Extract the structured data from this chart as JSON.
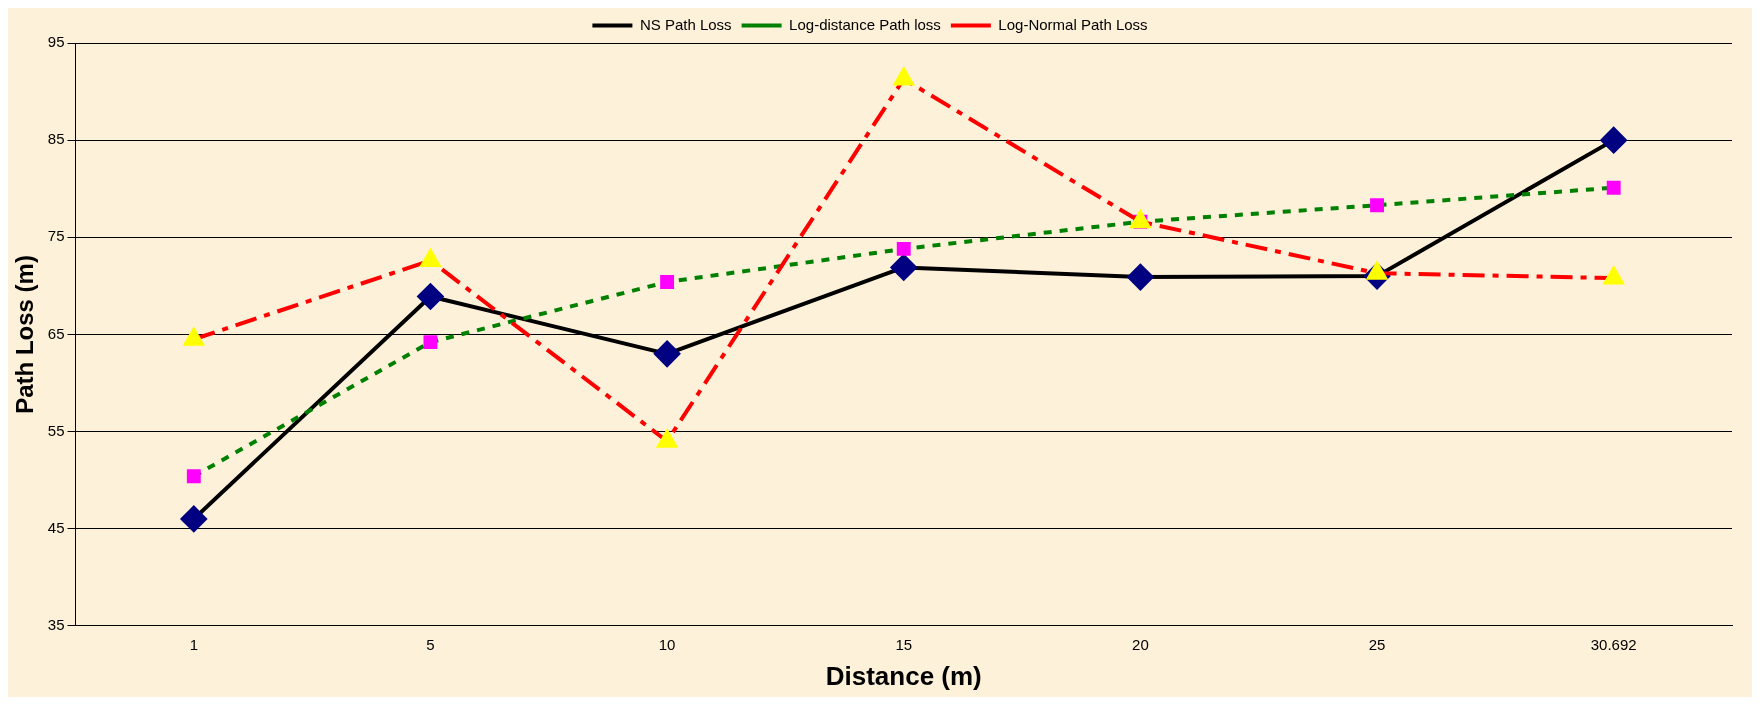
{
  "chart_data": {
    "type": "line",
    "xlabel": "Distance (m)",
    "ylabel": "Path Loss (m)",
    "categories": [
      "1",
      "5",
      "10",
      "15",
      "20",
      "25",
      "30.692"
    ],
    "ylim": [
      35,
      95
    ],
    "yticks": [
      35,
      45,
      55,
      65,
      75,
      85,
      95
    ],
    "grid": "y",
    "legend": "top",
    "series": [
      {
        "name": "NS Path Loss",
        "color": "#000000",
        "colors": [
          "#000080",
          "#000080",
          "#000080",
          "#000080",
          "#000080",
          "#000080",
          "#000080"
        ],
        "marker": "diamond",
        "line_style": "solid",
        "values": [
          46,
          68.9,
          63,
          71.9,
          70.9,
          71,
          85
        ]
      },
      {
        "name": "Log-distance Path loss",
        "color": "#008000",
        "colors": [
          "#ff00ff",
          "#ff00ff",
          "#ff00ff",
          "#ff00ff",
          "#ff00ff",
          "#ff00ff",
          "#ff00ff"
        ],
        "marker": "square",
        "line_style": "dotted",
        "values": [
          50.4,
          64.2,
          70.4,
          73.8,
          76.6,
          78.3,
          80.1
        ]
      },
      {
        "name": "Log-Normal Path Loss",
        "color": "#ff0000",
        "colors": [
          "#ffff00",
          "#ffff00",
          "#ffff00",
          "#ffff00",
          "#ffff00",
          "#ffff00",
          "#ffff00"
        ],
        "marker": "triangle",
        "line_style": "dashed",
        "values": [
          64.5,
          72.6,
          54,
          91.3,
          76.6,
          71.3,
          70.8
        ]
      }
    ]
  }
}
